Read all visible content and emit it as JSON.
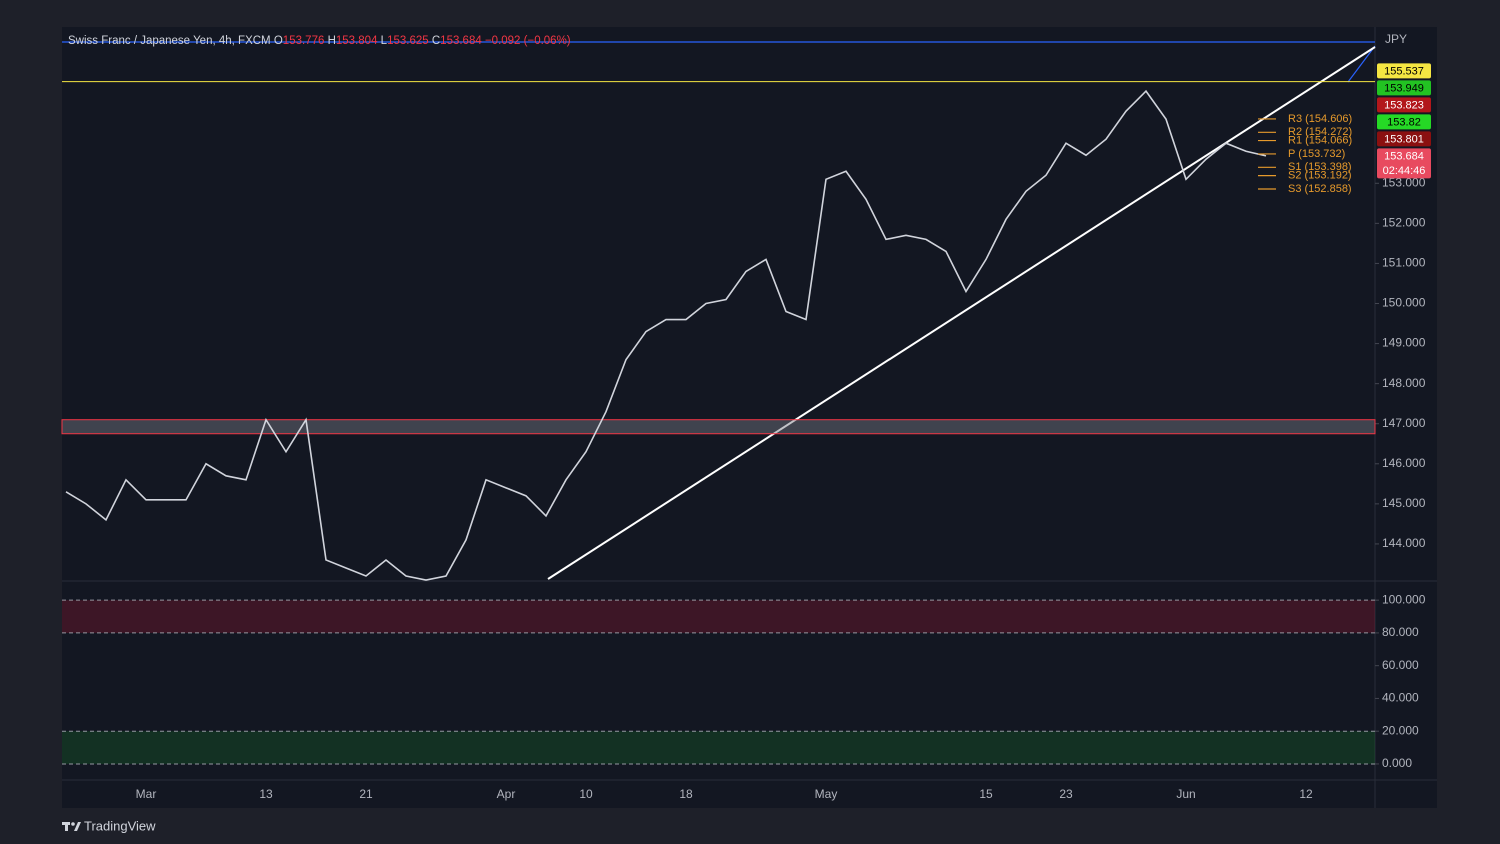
{
  "header": {
    "symbol": "Swiss Franc / Japanese Yen, 4h, FXCM",
    "ohlc": [
      {
        "key": "O",
        "value": "153.776"
      },
      {
        "key": "H",
        "value": "153.804"
      },
      {
        "key": "L",
        "value": "153.625"
      },
      {
        "key": "C",
        "value": "153.684"
      }
    ],
    "change": "−0.092 (−0.06%)"
  },
  "chart_data": [
    {
      "type": "line",
      "unit": "JPY",
      "categories": [
        null,
        null,
        null,
        null,
        "Mar",
        null,
        null,
        null,
        null,
        null,
        "13",
        null,
        null,
        null,
        null,
        "21",
        null,
        null,
        null,
        null,
        null,
        null,
        "Apr",
        null,
        null,
        null,
        "10",
        null,
        null,
        null,
        null,
        "18",
        null,
        null,
        null,
        null,
        null,
        null,
        "May",
        null,
        null,
        null,
        null,
        null,
        null,
        null,
        "15",
        null,
        null,
        null,
        "23",
        null,
        null,
        null,
        null,
        null,
        "Jun",
        null,
        null,
        null,
        null,
        null,
        "12",
        null,
        null,
        null
      ],
      "values": [
        145.3,
        145.0,
        144.6,
        145.6,
        145.1,
        145.1,
        145.1,
        146.0,
        145.7,
        145.6,
        147.1,
        146.3,
        147.1,
        143.6,
        143.4,
        143.2,
        143.6,
        143.2,
        143.1,
        143.2,
        144.1,
        145.6,
        145.4,
        145.2,
        144.7,
        145.6,
        146.3,
        147.3,
        148.6,
        149.3,
        149.6,
        149.6,
        150.0,
        150.1,
        150.8,
        151.1,
        149.8,
        149.6,
        153.1,
        153.3,
        152.6,
        151.6,
        151.7,
        151.6,
        151.3,
        150.3,
        151.1,
        152.1,
        152.8,
        153.2,
        154.0,
        153.7,
        154.1,
        154.8,
        155.3,
        154.6,
        153.1,
        153.6,
        154.0,
        153.8,
        153.684,
        null,
        null,
        null,
        null,
        null
      ],
      "color": "#d1d4dc",
      "ylim": [
        143.1,
        156.9
      ],
      "yticks": [
        {
          "value": 144,
          "label": "144.000"
        },
        {
          "value": 145,
          "label": "145.000"
        },
        {
          "value": 146,
          "label": "146.000"
        },
        {
          "value": 147,
          "label": "147.000"
        },
        {
          "value": 148,
          "label": "148.000"
        },
        {
          "value": 149,
          "label": "149.000"
        },
        {
          "value": 150,
          "label": "150.000"
        },
        {
          "value": 151,
          "label": "151.000"
        },
        {
          "value": 152,
          "label": "152.000"
        },
        {
          "value": 153,
          "label": "153.000"
        }
      ],
      "grid": false,
      "zone": [
        146.75,
        147.1
      ],
      "price_tags": [
        {
          "value": 155.537,
          "color": "#f5e642",
          "text_color": "#000000"
        },
        {
          "value": 153.949,
          "color": "#22c322",
          "text_color": "#000000"
        },
        {
          "value": 153.823,
          "color": "#b2171b",
          "text_color": "#ffffff"
        },
        {
          "value": 153.82,
          "color": "#25d925",
          "text_color": "#000000"
        },
        {
          "value": 153.801,
          "color": "#8b1010",
          "text_color": "#ffffff"
        },
        {
          "value": 153.684,
          "color": "#e84a5f",
          "text_color": "#ffffff",
          "countdown": "02:44:46"
        }
      ],
      "pivots": [
        {
          "value": 154.606,
          "label": "R3 (154.606)"
        },
        {
          "value": 154.272,
          "label": "R2 (154.272)"
        },
        {
          "value": 154.066,
          "label": "R1 (154.066)"
        },
        {
          "value": 153.732,
          "label": "P (153.732)"
        },
        {
          "value": 153.398,
          "label": "S1 (153.398)"
        },
        {
          "value": 153.192,
          "label": "S2 (153.192)"
        },
        {
          "value": 152.858,
          "label": "S3 (152.858)"
        }
      ],
      "pivot_color": "#e69a2c"
    },
    {
      "type": "oscillator",
      "ylim": [
        -9.8,
        111.7
      ],
      "yticks": [
        {
          "value": 100,
          "label": "100.000"
        },
        {
          "value": 80,
          "label": "80.000"
        },
        {
          "value": 60,
          "label": "60.000"
        },
        {
          "value": 40,
          "label": "40.000"
        },
        {
          "value": 20,
          "label": "20.000"
        },
        {
          "value": 0,
          "label": "0.000"
        }
      ]
    }
  ],
  "footer": {
    "brand": "TradingView"
  }
}
